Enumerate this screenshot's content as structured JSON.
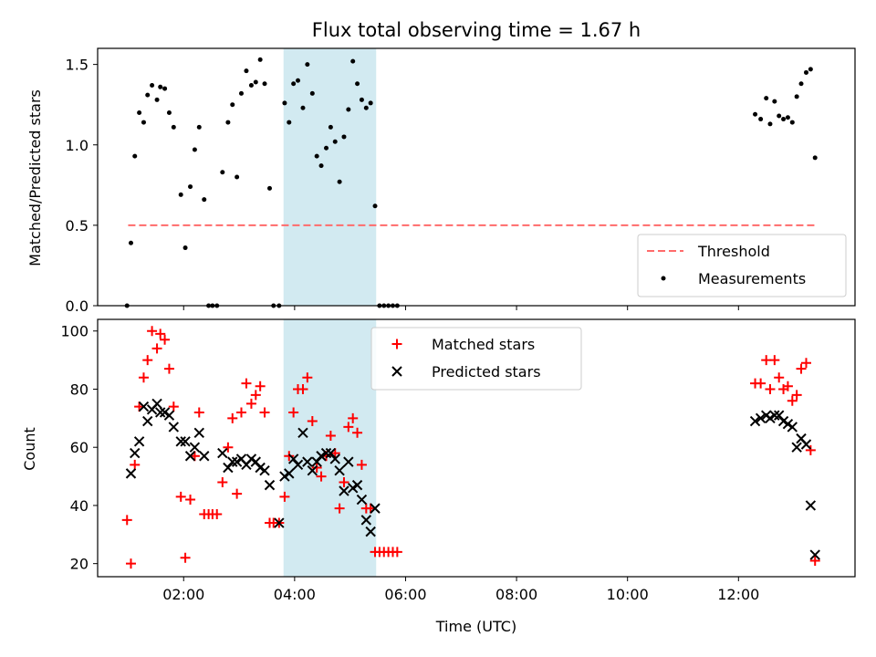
{
  "chart_data": {
    "title": "Flux total observing time = 1.67 h",
    "xlabel": "Time (UTC)",
    "x_tick_labels": [
      "02:00",
      "04:00",
      "06:00",
      "08:00",
      "10:00",
      "12:00"
    ],
    "x_ticks_hours": [
      2,
      4,
      6,
      8,
      10,
      12
    ],
    "xlim_hours": [
      0.45,
      14.1
    ],
    "highlight_span_hours": [
      3.8,
      5.47
    ],
    "highlight_color": "#add8e6",
    "panels": [
      {
        "type": "scatter",
        "ylabel": "Matched/Predicted stars",
        "ylim": [
          0,
          1.6
        ],
        "y_ticks": [
          0,
          0.5,
          1.0,
          1.5
        ],
        "y_tick_labels": [
          "0.0",
          "0.5",
          "1.0",
          "1.5"
        ],
        "legend_position": "lower right",
        "threshold": {
          "name": "Threshold",
          "value": 0.5,
          "x_range_hours": [
            1.0,
            13.4
          ],
          "color": "#ff6b6b"
        },
        "series": [
          {
            "name": "Measurements",
            "color": "#000000",
            "marker": "dot",
            "points": [
              [
                0.98,
                0.0
              ],
              [
                1.05,
                0.39
              ],
              [
                1.12,
                0.93
              ],
              [
                1.2,
                1.2
              ],
              [
                1.28,
                1.14
              ],
              [
                1.35,
                1.31
              ],
              [
                1.43,
                1.37
              ],
              [
                1.52,
                1.28
              ],
              [
                1.58,
                1.36
              ],
              [
                1.66,
                1.35
              ],
              [
                1.74,
                1.2
              ],
              [
                1.82,
                1.11
              ],
              [
                1.95,
                0.69
              ],
              [
                2.03,
                0.36
              ],
              [
                2.12,
                0.74
              ],
              [
                2.2,
                0.97
              ],
              [
                2.28,
                1.11
              ],
              [
                2.37,
                0.66
              ],
              [
                2.45,
                0.0
              ],
              [
                2.52,
                0.0
              ],
              [
                2.6,
                0.0
              ],
              [
                2.7,
                0.83
              ],
              [
                2.8,
                1.14
              ],
              [
                2.88,
                1.25
              ],
              [
                2.96,
                0.8
              ],
              [
                3.04,
                1.32
              ],
              [
                3.13,
                1.46
              ],
              [
                3.22,
                1.37
              ],
              [
                3.3,
                1.39
              ],
              [
                3.38,
                1.53
              ],
              [
                3.46,
                1.38
              ],
              [
                3.55,
                0.73
              ],
              [
                3.62,
                0.0
              ],
              [
                3.72,
                0.0
              ],
              [
                3.82,
                1.26
              ],
              [
                3.9,
                1.14
              ],
              [
                3.98,
                1.38
              ],
              [
                4.06,
                1.4
              ],
              [
                4.15,
                1.23
              ],
              [
                4.23,
                1.5
              ],
              [
                4.32,
                1.32
              ],
              [
                4.4,
                0.93
              ],
              [
                4.48,
                0.87
              ],
              [
                4.57,
                0.98
              ],
              [
                4.65,
                1.11
              ],
              [
                4.73,
                1.02
              ],
              [
                4.81,
                0.77
              ],
              [
                4.89,
                1.05
              ],
              [
                4.97,
                1.22
              ],
              [
                5.05,
                1.52
              ],
              [
                5.13,
                1.38
              ],
              [
                5.21,
                1.28
              ],
              [
                5.29,
                1.23
              ],
              [
                5.37,
                1.26
              ],
              [
                5.45,
                0.62
              ],
              [
                5.53,
                0.0
              ],
              [
                5.61,
                0.0
              ],
              [
                5.69,
                0.0
              ],
              [
                5.77,
                0.0
              ],
              [
                5.85,
                0.0
              ],
              [
                12.3,
                1.19
              ],
              [
                12.4,
                1.16
              ],
              [
                12.5,
                1.29
              ],
              [
                12.57,
                1.13
              ],
              [
                12.65,
                1.27
              ],
              [
                12.73,
                1.18
              ],
              [
                12.81,
                1.16
              ],
              [
                12.89,
                1.17
              ],
              [
                12.97,
                1.14
              ],
              [
                13.05,
                1.3
              ],
              [
                13.13,
                1.38
              ],
              [
                13.22,
                1.45
              ],
              [
                13.3,
                1.47
              ],
              [
                13.38,
                0.92
              ]
            ]
          }
        ]
      },
      {
        "type": "scatter",
        "ylabel": "Count",
        "ylim": [
          15.5,
          104
        ],
        "y_ticks": [
          20,
          40,
          60,
          80,
          100
        ],
        "y_tick_labels": [
          "20",
          "40",
          "60",
          "80",
          "100"
        ],
        "legend_position": "upper center",
        "series": [
          {
            "name": "Matched stars",
            "color": "#ff0000",
            "marker": "plus",
            "points": [
              [
                0.98,
                35
              ],
              [
                1.05,
                20
              ],
              [
                1.12,
                54
              ],
              [
                1.2,
                74
              ],
              [
                1.28,
                84
              ],
              [
                1.35,
                90
              ],
              [
                1.43,
                100
              ],
              [
                1.52,
                94
              ],
              [
                1.58,
                99
              ],
              [
                1.66,
                97
              ],
              [
                1.74,
                87
              ],
              [
                1.82,
                74
              ],
              [
                1.95,
                43
              ],
              [
                2.03,
                22
              ],
              [
                2.12,
                42
              ],
              [
                2.2,
                57
              ],
              [
                2.28,
                72
              ],
              [
                2.37,
                37
              ],
              [
                2.45,
                37
              ],
              [
                2.52,
                37
              ],
              [
                2.6,
                37
              ],
              [
                2.7,
                48
              ],
              [
                2.8,
                60
              ],
              [
                2.88,
                70
              ],
              [
                2.96,
                44
              ],
              [
                3.04,
                72
              ],
              [
                3.13,
                82
              ],
              [
                3.22,
                75
              ],
              [
                3.3,
                78
              ],
              [
                3.38,
                81
              ],
              [
                3.46,
                72
              ],
              [
                3.55,
                34
              ],
              [
                3.62,
                34
              ],
              [
                3.72,
                34
              ],
              [
                3.82,
                43
              ],
              [
                3.9,
                57
              ],
              [
                3.98,
                72
              ],
              [
                4.06,
                80
              ],
              [
                4.15,
                80
              ],
              [
                4.23,
                84
              ],
              [
                4.32,
                69
              ],
              [
                4.4,
                53
              ],
              [
                4.48,
                50
              ],
              [
                4.57,
                57
              ],
              [
                4.65,
                64
              ],
              [
                4.73,
                58
              ],
              [
                4.81,
                39
              ],
              [
                4.89,
                48
              ],
              [
                4.97,
                67
              ],
              [
                5.05,
                70
              ],
              [
                5.13,
                65
              ],
              [
                5.21,
                54
              ],
              [
                5.29,
                39
              ],
              [
                5.37,
                39
              ],
              [
                5.45,
                24
              ],
              [
                5.53,
                24
              ],
              [
                5.61,
                24
              ],
              [
                5.69,
                24
              ],
              [
                5.77,
                24
              ],
              [
                5.85,
                24
              ],
              [
                12.3,
                82
              ],
              [
                12.4,
                82
              ],
              [
                12.5,
                90
              ],
              [
                12.57,
                80
              ],
              [
                12.65,
                90
              ],
              [
                12.73,
                84
              ],
              [
                12.81,
                80
              ],
              [
                12.89,
                81
              ],
              [
                12.97,
                76
              ],
              [
                13.05,
                78
              ],
              [
                13.13,
                87
              ],
              [
                13.22,
                89
              ],
              [
                13.3,
                59
              ],
              [
                13.38,
                21
              ]
            ]
          },
          {
            "name": "Predicted stars",
            "color": "#000000",
            "marker": "x",
            "points": [
              [
                1.05,
                51
              ],
              [
                1.12,
                58
              ],
              [
                1.2,
                62
              ],
              [
                1.28,
                74
              ],
              [
                1.35,
                69
              ],
              [
                1.43,
                73
              ],
              [
                1.52,
                75
              ],
              [
                1.58,
                72
              ],
              [
                1.66,
                72
              ],
              [
                1.74,
                71
              ],
              [
                1.82,
                67
              ],
              [
                1.95,
                62
              ],
              [
                2.03,
                62
              ],
              [
                2.12,
                57
              ],
              [
                2.2,
                60
              ],
              [
                2.28,
                65
              ],
              [
                2.37,
                57
              ],
              [
                2.7,
                58
              ],
              [
                2.8,
                53
              ],
              [
                2.88,
                55
              ],
              [
                2.96,
                55
              ],
              [
                3.04,
                56
              ],
              [
                3.13,
                54
              ],
              [
                3.22,
                56
              ],
              [
                3.3,
                55
              ],
              [
                3.38,
                53
              ],
              [
                3.46,
                52
              ],
              [
                3.55,
                47
              ],
              [
                3.72,
                34
              ],
              [
                3.82,
                50
              ],
              [
                3.9,
                51
              ],
              [
                3.98,
                56
              ],
              [
                4.06,
                54
              ],
              [
                4.15,
                65
              ],
              [
                4.23,
                55
              ],
              [
                4.32,
                52
              ],
              [
                4.4,
                55
              ],
              [
                4.48,
                57
              ],
              [
                4.57,
                58
              ],
              [
                4.65,
                58
              ],
              [
                4.73,
                56
              ],
              [
                4.81,
                52
              ],
              [
                4.89,
                45
              ],
              [
                4.97,
                55
              ],
              [
                5.05,
                46
              ],
              [
                5.13,
                47
              ],
              [
                5.21,
                42
              ],
              [
                5.29,
                35
              ],
              [
                5.37,
                31
              ],
              [
                5.45,
                39
              ],
              [
                12.3,
                69
              ],
              [
                12.4,
                70
              ],
              [
                12.5,
                71
              ],
              [
                12.57,
                70
              ],
              [
                12.65,
                71
              ],
              [
                12.73,
                71
              ],
              [
                12.81,
                69
              ],
              [
                12.89,
                68
              ],
              [
                12.97,
                67
              ],
              [
                13.05,
                60
              ],
              [
                13.13,
                63
              ],
              [
                13.22,
                61
              ],
              [
                13.3,
                40
              ],
              [
                13.38,
                23
              ]
            ]
          }
        ]
      }
    ]
  }
}
